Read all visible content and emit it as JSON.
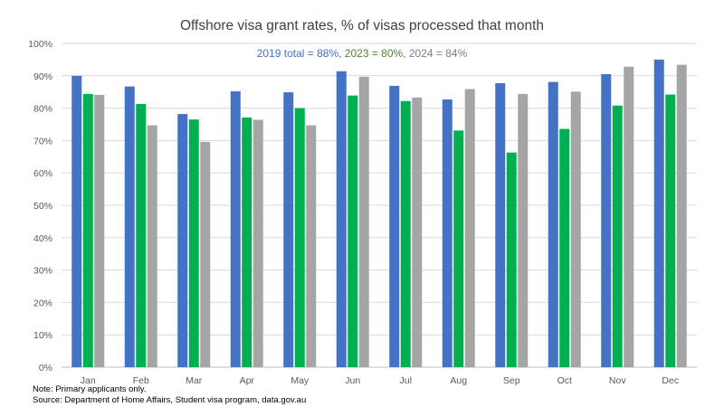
{
  "chart_data": {
    "type": "bar",
    "title": "Offshore visa grant rates, % of visas processed that month",
    "subtitle": {
      "part1": "2019 total = 88%,",
      "part2": " 2023 = 80%,",
      "part3": " 2024 = 84%"
    },
    "categories": [
      "Jan",
      "Feb",
      "Mar",
      "Apr",
      "May",
      "Jun",
      "Jul",
      "Aug",
      "Sep",
      "Oct",
      "Nov",
      "Dec"
    ],
    "series": [
      {
        "values": [
          90,
          86.7,
          78.2,
          85.2,
          84.9,
          91.4,
          86.9,
          82.7,
          87.7,
          88.1,
          90.5,
          95.0
        ],
        "color": "#4472C4"
      },
      {
        "values": [
          84.4,
          81.3,
          76.5,
          77.1,
          80.0,
          83.9,
          82.2,
          73.1,
          66.3,
          73.6,
          80.8,
          84.2
        ],
        "color": "#00B050"
      },
      {
        "values": [
          84.1,
          74.7,
          69.6,
          76.4,
          74.7,
          89.7,
          83.3,
          85.9,
          84.4,
          85.1,
          92.8,
          93.4
        ],
        "color": "#A5A5A5"
      }
    ],
    "subtitle_colors": [
      "#4472C4",
      "#548235",
      "#7F7F7F"
    ],
    "ylim": [
      0,
      100
    ],
    "yticks": [
      "0%",
      "10%",
      "20%",
      "30%",
      "40%",
      "50%",
      "60%",
      "70%",
      "80%",
      "90%",
      "100%"
    ],
    "grid": true,
    "xlabel": "",
    "ylabel": ""
  },
  "notes": {
    "note": "Note: Primary applicants only.",
    "source": "Source: Department of Home Affairs, Student visa program, data.gov.au"
  }
}
